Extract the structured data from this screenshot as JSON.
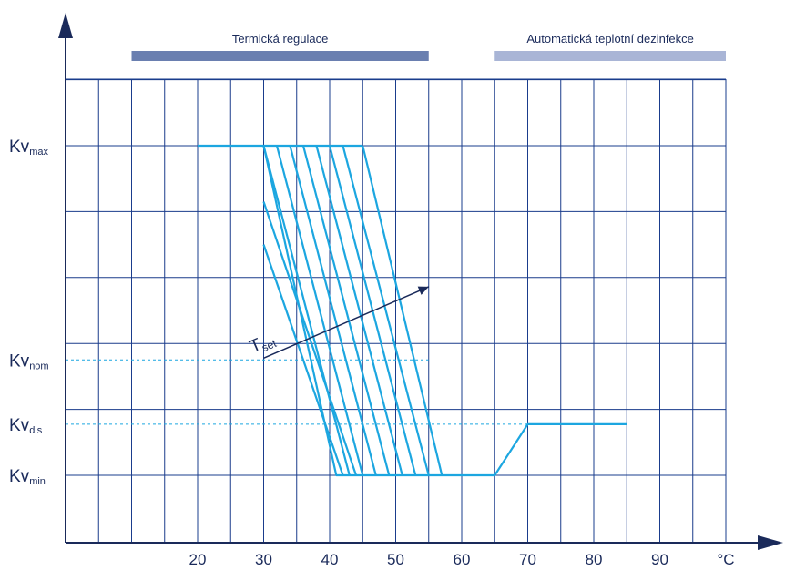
{
  "bands": [
    {
      "label": "Termická regulace",
      "x_from": 10,
      "x_to": 55,
      "color": "#6a7fb0"
    },
    {
      "label": "Automatická teplotní dezinfekce",
      "x_from": 65,
      "x_to": 100,
      "color": "#a9b5d6"
    }
  ],
  "x_ticks": [
    {
      "value": 20,
      "label": "20"
    },
    {
      "value": 30,
      "label": "30"
    },
    {
      "value": 40,
      "label": "40"
    },
    {
      "value": 50,
      "label": "50"
    },
    {
      "value": 60,
      "label": "60"
    },
    {
      "value": 70,
      "label": "70"
    },
    {
      "value": 80,
      "label": "80"
    },
    {
      "value": 90,
      "label": "90"
    },
    {
      "value": 100,
      "label": "°C"
    }
  ],
  "y_levels": [
    {
      "key": "max",
      "main": "Kv",
      "sub": "max",
      "value": 1.0
    },
    {
      "key": "nom",
      "main": "Kv",
      "sub": "nom",
      "value": 0.35
    },
    {
      "key": "dis",
      "main": "Kv",
      "sub": "dis",
      "value": 0.155
    },
    {
      "key": "min",
      "main": "Kv",
      "sub": "min",
      "value": 0.0
    }
  ],
  "tset_label": {
    "main": "T",
    "sub": "set"
  },
  "colors": {
    "axis": "#1a2a5a",
    "grid": "#1a3c8c",
    "curve": "#1ca6e0"
  },
  "curves": [
    {
      "points": [
        [
          20,
          1.0
        ],
        [
          30,
          1.0
        ],
        [
          41,
          0.0
        ],
        [
          60,
          0.0
        ]
      ]
    },
    {
      "points": [
        [
          30,
          1.0
        ],
        [
          43,
          0.0
        ]
      ]
    },
    {
      "points": [
        [
          32,
          1.0
        ],
        [
          45,
          0.0
        ]
      ]
    },
    {
      "points": [
        [
          34,
          1.0
        ],
        [
          47,
          0.0
        ]
      ]
    },
    {
      "points": [
        [
          36,
          1.0
        ],
        [
          49,
          0.0
        ]
      ]
    },
    {
      "points": [
        [
          38,
          1.0
        ],
        [
          51,
          0.0
        ]
      ]
    },
    {
      "points": [
        [
          40,
          1.0
        ],
        [
          53,
          0.0
        ]
      ]
    },
    {
      "points": [
        [
          42,
          1.0
        ],
        [
          55,
          0.0
        ]
      ]
    },
    {
      "points": [
        [
          30,
          0.83
        ],
        [
          44,
          0.0
        ]
      ]
    },
    {
      "points": [
        [
          30,
          0.7
        ],
        [
          42,
          0.0
        ]
      ]
    },
    {
      "points": [
        [
          45,
          1.0
        ],
        [
          30,
          1.0
        ]
      ]
    },
    {
      "points": [
        [
          45,
          1.0
        ],
        [
          57,
          0.0
        ]
      ]
    },
    {
      "points": [
        [
          60,
          0.0
        ],
        [
          65,
          0.0
        ],
        [
          70,
          0.155
        ],
        [
          85,
          0.155
        ]
      ]
    }
  ],
  "tset_arrow": {
    "from": [
      30,
      0.35
    ],
    "to": [
      55,
      0.55
    ]
  }
}
